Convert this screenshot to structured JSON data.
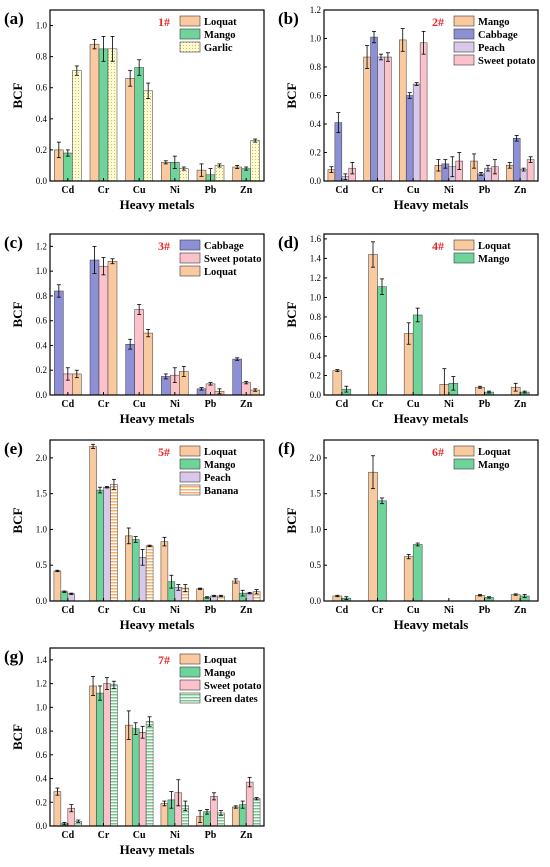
{
  "x_axis_label": "Heavy metals",
  "y_axis_label": "BCF",
  "chart_data": [
    {
      "panel_letter": "(a)",
      "site_label": "1#",
      "type": "bar",
      "categories": [
        "Cd",
        "Cr",
        "Cu",
        "Ni",
        "Pb",
        "Zn"
      ],
      "ylim": [
        0,
        1.1
      ],
      "yticks": [
        "0.0",
        "0.2",
        "0.4",
        "0.6",
        "0.8",
        "1.0"
      ],
      "legend_placement": "top-right",
      "series": [
        {
          "name": "Loquat",
          "color": "#f9c9a0",
          "pattern": "solid",
          "values": [
            0.2,
            0.88,
            0.66,
            0.12,
            0.07,
            0.09
          ],
          "errors": [
            0.05,
            0.03,
            0.05,
            0.01,
            0.04,
            0.01
          ]
        },
        {
          "name": "Mango",
          "color": "#6fd49a",
          "pattern": "solid",
          "values": [
            0.18,
            0.85,
            0.73,
            0.12,
            0.04,
            0.08
          ],
          "errors": [
            0.02,
            0.08,
            0.05,
            0.04,
            0.04,
            0.01
          ]
        },
        {
          "name": "Garlic",
          "color": "#fdfbd0",
          "pattern": "dotted",
          "values": [
            0.71,
            0.85,
            0.58,
            0.08,
            0.1,
            0.26
          ],
          "errors": [
            0.03,
            0.08,
            0.05,
            0.01,
            0.01,
            0.01
          ]
        }
      ]
    },
    {
      "panel_letter": "(b)",
      "site_label": "2#",
      "type": "bar",
      "categories": [
        "Cd",
        "Cr",
        "Cu",
        "Ni",
        "Pb",
        "Zn"
      ],
      "ylim": [
        0,
        1.2
      ],
      "yticks": [
        "0.0",
        "0.2",
        "0.4",
        "0.6",
        "0.8",
        "1.0",
        "1.2"
      ],
      "legend_placement": "top-right",
      "series": [
        {
          "name": "Mango",
          "color": "#f9c9a0",
          "pattern": "solid",
          "values": [
            0.08,
            0.87,
            0.99,
            0.11,
            0.14,
            0.11
          ],
          "errors": [
            0.02,
            0.08,
            0.08,
            0.04,
            0.05,
            0.02
          ]
        },
        {
          "name": "Cabbage",
          "color": "#8e90d6",
          "pattern": "solid",
          "values": [
            0.41,
            1.01,
            0.6,
            0.12,
            0.05,
            0.3
          ],
          "errors": [
            0.07,
            0.04,
            0.02,
            0.03,
            0.01,
            0.02
          ]
        },
        {
          "name": "Peach",
          "color": "#d9c8ea",
          "pattern": "solid",
          "values": [
            0.03,
            0.87,
            0.68,
            0.1,
            0.09,
            0.08
          ],
          "errors": [
            0.02,
            0.02,
            0.01,
            0.07,
            0.02,
            0.01
          ]
        },
        {
          "name": "Sweet potato",
          "color": "#fbc2cc",
          "pattern": "solid",
          "values": [
            0.09,
            0.87,
            0.97,
            0.14,
            0.1,
            0.15
          ],
          "errors": [
            0.04,
            0.03,
            0.08,
            0.06,
            0.05,
            0.02
          ]
        }
      ]
    },
    {
      "panel_letter": "(c)",
      "site_label": "3#",
      "type": "bar",
      "categories": [
        "Cd",
        "Cr",
        "Cu",
        "Ni",
        "Pb",
        "Zn"
      ],
      "ylim": [
        0,
        1.3
      ],
      "yticks": [
        "0.0",
        "0.2",
        "0.4",
        "0.6",
        "0.8",
        "1.0",
        "1.2"
      ],
      "legend_placement": "top-right",
      "series": [
        {
          "name": "Cabbage",
          "color": "#8e90d6",
          "pattern": "solid",
          "values": [
            0.84,
            1.09,
            0.41,
            0.15,
            0.05,
            0.29
          ],
          "errors": [
            0.05,
            0.11,
            0.04,
            0.02,
            0.01,
            0.01
          ]
        },
        {
          "name": "Sweet potato",
          "color": "#fbc2cc",
          "pattern": "solid",
          "values": [
            0.17,
            1.04,
            0.69,
            0.16,
            0.09,
            0.1
          ],
          "errors": [
            0.05,
            0.07,
            0.04,
            0.06,
            0.01,
            0.01
          ]
        },
        {
          "name": "Loquat",
          "color": "#f9c9a0",
          "pattern": "solid",
          "values": [
            0.17,
            1.08,
            0.5,
            0.19,
            0.03,
            0.04
          ],
          "errors": [
            0.03,
            0.02,
            0.03,
            0.04,
            0.02,
            0.01
          ]
        }
      ]
    },
    {
      "panel_letter": "(d)",
      "site_label": "4#",
      "type": "bar",
      "categories": [
        "Cd",
        "Cr",
        "Cu",
        "Ni",
        "Pb",
        "Zn"
      ],
      "ylim": [
        0,
        1.65
      ],
      "yticks": [
        "0.0",
        "0.2",
        "0.4",
        "0.6",
        "0.8",
        "1.0",
        "1.2",
        "1.4",
        "1.6"
      ],
      "legend_placement": "top-right",
      "series": [
        {
          "name": "Loquat",
          "color": "#f9c9a0",
          "pattern": "solid",
          "values": [
            0.25,
            1.44,
            0.63,
            0.11,
            0.08,
            0.08
          ],
          "errors": [
            0.01,
            0.13,
            0.11,
            0.16,
            0.01,
            0.04
          ]
        },
        {
          "name": "Mango",
          "color": "#6fd49a",
          "pattern": "solid",
          "values": [
            0.06,
            1.11,
            0.82,
            0.12,
            0.03,
            0.03
          ],
          "errors": [
            0.03,
            0.08,
            0.07,
            0.07,
            0.01,
            0.01
          ]
        }
      ]
    },
    {
      "panel_letter": "(e)",
      "site_label": "5#",
      "type": "bar",
      "categories": [
        "Cd",
        "Cr",
        "Cu",
        "Ni",
        "Pb",
        "Zn"
      ],
      "ylim": [
        0,
        2.25
      ],
      "yticks": [
        "0.0",
        "0.5",
        "1.0",
        "1.5",
        "2.0"
      ],
      "legend_placement": "top-right",
      "series": [
        {
          "name": "Loquat",
          "color": "#f9c9a0",
          "pattern": "solid",
          "values": [
            0.42,
            2.16,
            0.91,
            0.83,
            0.17,
            0.28
          ],
          "errors": [
            0.01,
            0.03,
            0.11,
            0.06,
            0.01,
            0.03
          ]
        },
        {
          "name": "Mango",
          "color": "#6fd49a",
          "pattern": "solid",
          "values": [
            0.13,
            1.55,
            0.86,
            0.27,
            0.05,
            0.11
          ],
          "errors": [
            0.01,
            0.04,
            0.04,
            0.09,
            0.01,
            0.04
          ]
        },
        {
          "name": "Peach",
          "color": "#d9c8ea",
          "pattern": "solid",
          "values": [
            0.1,
            1.59,
            0.61,
            0.19,
            0.07,
            0.11
          ],
          "errors": [
            0.01,
            0.01,
            0.11,
            0.04,
            0.01,
            0.01
          ]
        },
        {
          "name": "Banana",
          "color": "#f6b26b",
          "pattern": "hstripe",
          "values": [
            0.0,
            1.63,
            0.77,
            0.18,
            0.07,
            0.13
          ],
          "errors": [
            0.0,
            0.07,
            0.01,
            0.05,
            0.01,
            0.03
          ]
        }
      ]
    },
    {
      "panel_letter": "(f)",
      "site_label": "6#",
      "type": "bar",
      "categories": [
        "Cd",
        "Cr",
        "Cu",
        "Ni",
        "Pb",
        "Zn"
      ],
      "ylim": [
        0,
        2.25
      ],
      "yticks": [
        "0.0",
        "0.5",
        "1.0",
        "1.5",
        "2.0"
      ],
      "legend_placement": "top-right",
      "series": [
        {
          "name": "Loquat",
          "color": "#f9c9a0",
          "pattern": "solid",
          "values": [
            0.07,
            1.8,
            0.62,
            0.0,
            0.08,
            0.09
          ],
          "errors": [
            0.01,
            0.23,
            0.03,
            0.0,
            0.01,
            0.01
          ]
        },
        {
          "name": "Mango",
          "color": "#6fd49a",
          "pattern": "solid",
          "values": [
            0.04,
            1.4,
            0.79,
            0.0,
            0.05,
            0.07
          ],
          "errors": [
            0.02,
            0.04,
            0.02,
            0.0,
            0.01,
            0.02
          ]
        }
      ]
    },
    {
      "panel_letter": "(g)",
      "site_label": "7#",
      "type": "bar",
      "categories": [
        "Cd",
        "Cr",
        "Cu",
        "Ni",
        "Pb",
        "Zn"
      ],
      "ylim": [
        0,
        1.5
      ],
      "yticks": [
        "0.0",
        "0.2",
        "0.4",
        "0.6",
        "0.8",
        "1.0",
        "1.2",
        "1.4"
      ],
      "legend_placement": "top-right",
      "series": [
        {
          "name": "Loquat",
          "color": "#f9c9a0",
          "pattern": "solid",
          "values": [
            0.29,
            1.18,
            0.85,
            0.19,
            0.08,
            0.16
          ],
          "errors": [
            0.03,
            0.08,
            0.12,
            0.02,
            0.05,
            0.01
          ]
        },
        {
          "name": "Mango",
          "color": "#6fd49a",
          "pattern": "solid",
          "values": [
            0.02,
            1.12,
            0.82,
            0.22,
            0.12,
            0.18
          ],
          "errors": [
            0.01,
            0.06,
            0.05,
            0.07,
            0.02,
            0.03
          ]
        },
        {
          "name": "Sweet potato",
          "color": "#fbc2cc",
          "pattern": "solid",
          "values": [
            0.15,
            1.2,
            0.79,
            0.28,
            0.25,
            0.37
          ],
          "errors": [
            0.03,
            0.05,
            0.05,
            0.11,
            0.03,
            0.04
          ]
        },
        {
          "name": "Green dates",
          "color": "#74c98d",
          "pattern": "hstripe",
          "values": [
            0.04,
            1.19,
            0.88,
            0.17,
            0.11,
            0.23
          ],
          "errors": [
            0.01,
            0.03,
            0.04,
            0.04,
            0.02,
            0.01
          ]
        }
      ]
    }
  ]
}
